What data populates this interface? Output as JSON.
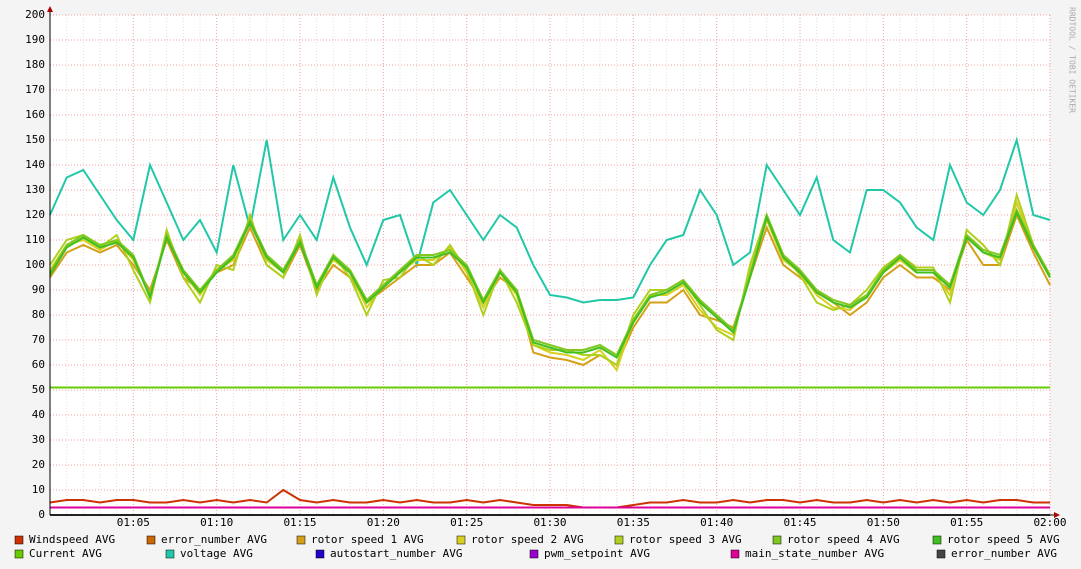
{
  "chart_data": {
    "type": "line",
    "watermark": "RRDTOOL / TOBI OETIKER",
    "categories": [
      null,
      null,
      null,
      null,
      null,
      "01:05",
      null,
      null,
      null,
      null,
      "01:10",
      null,
      null,
      null,
      null,
      "01:15",
      null,
      null,
      null,
      null,
      "01:20",
      null,
      null,
      null,
      null,
      "01:25",
      null,
      null,
      null,
      null,
      "01:30",
      null,
      null,
      null,
      null,
      "01:35",
      null,
      null,
      null,
      null,
      "01:40",
      null,
      null,
      null,
      null,
      "01:45",
      null,
      null,
      null,
      null,
      "01:50",
      null,
      null,
      null,
      null,
      "01:55",
      null,
      null,
      null,
      null,
      "02:00"
    ],
    "ylim": [
      0,
      200
    ],
    "yticks": [
      0,
      10,
      20,
      30,
      40,
      50,
      60,
      70,
      80,
      90,
      100,
      110,
      120,
      130,
      140,
      150,
      160,
      170,
      180,
      190,
      200
    ],
    "grid": true,
    "series": [
      {
        "name": "Windspeed AVG",
        "color": "#cc3300",
        "values": [
          5,
          6,
          6,
          5,
          6,
          6,
          5,
          5,
          6,
          5,
          6,
          5,
          6,
          5,
          10,
          6,
          5,
          6,
          5,
          5,
          6,
          5,
          6,
          5,
          5,
          6,
          5,
          6,
          5,
          4,
          4,
          4,
          3,
          3,
          3,
          4,
          5,
          5,
          6,
          5,
          5,
          6,
          5,
          6,
          6,
          5,
          6,
          5,
          5,
          6,
          5,
          6,
          5,
          6,
          5,
          6,
          5,
          6,
          6,
          5,
          5
        ]
      },
      {
        "name": "error_number AVG",
        "color": "#cc6600",
        "values": [
          0,
          0,
          0,
          0,
          0,
          0,
          0,
          0,
          0,
          0,
          0,
          0,
          0,
          0,
          0,
          0,
          0,
          0,
          0,
          0,
          0,
          0,
          0,
          0,
          0,
          0,
          0,
          0,
          0,
          0,
          0,
          0,
          0,
          0,
          0,
          0,
          0,
          0,
          0,
          0,
          0,
          0,
          0,
          0,
          0,
          0,
          0,
          0,
          0,
          0,
          0,
          0,
          0,
          0,
          0,
          0,
          0,
          0,
          0,
          0,
          0
        ]
      },
      {
        "name": "rotor speed 1 AVG",
        "color": "#d4a017",
        "values": [
          95,
          105,
          108,
          105,
          108,
          100,
          90,
          110,
          95,
          90,
          97,
          100,
          115,
          100,
          95,
          108,
          90,
          100,
          95,
          85,
          90,
          95,
          100,
          100,
          105,
          95,
          85,
          95,
          90,
          65,
          63,
          62,
          60,
          64,
          60,
          75,
          85,
          85,
          90,
          80,
          78,
          75,
          95,
          115,
          100,
          95,
          90,
          85,
          80,
          85,
          95,
          100,
          95,
          95,
          90,
          110,
          100,
          100,
          120,
          105,
          92
        ]
      },
      {
        "name": "rotor speed 2 AVG",
        "color": "#d8d020",
        "values": [
          98,
          108,
          110,
          106,
          110,
          102,
          88,
          112,
          97,
          88,
          98,
          102,
          118,
          102,
          97,
          110,
          92,
          102,
          97,
          83,
          92,
          97,
          102,
          102,
          107,
          97,
          83,
          97,
          88,
          68,
          65,
          64,
          62,
          66,
          58,
          78,
          88,
          88,
          92,
          82,
          75,
          72,
          98,
          118,
          102,
          97,
          88,
          83,
          82,
          88,
          97,
          102,
          97,
          97,
          88,
          112,
          105,
          102,
          125,
          107,
          95
        ]
      },
      {
        "name": "rotor speed 3 AVG",
        "color": "#b0d020",
        "values": [
          100,
          110,
          112,
          107,
          112,
          98,
          85,
          114,
          95,
          85,
          100,
          98,
          120,
          100,
          95,
          112,
          88,
          104,
          95,
          80,
          94,
          95,
          104,
          100,
          108,
          98,
          80,
          98,
          85,
          68,
          66,
          66,
          64,
          64,
          60,
          80,
          90,
          90,
          94,
          84,
          74,
          70,
          100,
          120,
          104,
          96,
          85,
          82,
          84,
          90,
          99,
          104,
          99,
          99,
          85,
          114,
          108,
          100,
          128,
          108,
          96
        ]
      },
      {
        "name": "rotor speed 4 AVG",
        "color": "#80c820",
        "values": [
          97,
          108,
          112,
          108,
          110,
          104,
          88,
          112,
          98,
          90,
          98,
          104,
          118,
          104,
          98,
          110,
          92,
          104,
          98,
          86,
          92,
          98,
          104,
          104,
          106,
          100,
          86,
          98,
          90,
          70,
          68,
          66,
          66,
          68,
          64,
          78,
          88,
          90,
          94,
          86,
          80,
          74,
          96,
          120,
          104,
          98,
          90,
          86,
          84,
          88,
          98,
          104,
          98,
          98,
          92,
          112,
          106,
          104,
          122,
          108,
          96
        ]
      },
      {
        "name": "rotor speed 5 AVG",
        "color": "#40c020",
        "values": [
          96,
          107,
          111,
          107,
          109,
          103,
          87,
          111,
          97,
          89,
          97,
          103,
          117,
          103,
          97,
          109,
          91,
          103,
          97,
          85,
          91,
          97,
          103,
          103,
          105,
          99,
          85,
          97,
          89,
          69,
          67,
          65,
          65,
          67,
          63,
          77,
          87,
          89,
          93,
          85,
          79,
          73,
          95,
          119,
          103,
          97,
          89,
          85,
          83,
          87,
          97,
          103,
          97,
          97,
          91,
          111,
          105,
          103,
          121,
          107,
          95
        ]
      },
      {
        "name": "Current AVG",
        "color": "#66cc00",
        "values": [
          51,
          51,
          51,
          51,
          51,
          51,
          51,
          51,
          51,
          51,
          51,
          51,
          51,
          51,
          51,
          51,
          51,
          51,
          51,
          51,
          51,
          51,
          51,
          51,
          51,
          51,
          51,
          51,
          51,
          51,
          51,
          51,
          51,
          51,
          51,
          51,
          51,
          51,
          51,
          51,
          51,
          51,
          51,
          51,
          51,
          51,
          51,
          51,
          51,
          51,
          51,
          51,
          51,
          51,
          51,
          51,
          51,
          51,
          51,
          51,
          51
        ]
      },
      {
        "name": "voltage AVG",
        "color": "#20c8a8",
        "values": [
          120,
          135,
          138,
          128,
          118,
          110,
          140,
          125,
          110,
          118,
          105,
          140,
          115,
          150,
          110,
          120,
          110,
          135,
          115,
          100,
          118,
          120,
          100,
          125,
          130,
          120,
          110,
          120,
          115,
          100,
          88,
          87,
          85,
          86,
          86,
          87,
          100,
          110,
          112,
          130,
          120,
          100,
          105,
          140,
          130,
          120,
          135,
          110,
          105,
          130,
          130,
          125,
          115,
          110,
          140,
          125,
          120,
          130,
          150,
          120,
          118
        ]
      },
      {
        "name": "autostart_number AVG",
        "color": "#2200cc",
        "values": [
          0,
          0,
          0,
          0,
          0,
          0,
          0,
          0,
          0,
          0,
          0,
          0,
          0,
          0,
          0,
          0,
          0,
          0,
          0,
          0,
          0,
          0,
          0,
          0,
          0,
          0,
          0,
          0,
          0,
          0,
          0,
          0,
          0,
          0,
          0,
          0,
          0,
          0,
          0,
          0,
          0,
          0,
          0,
          0,
          0,
          0,
          0,
          0,
          0,
          0,
          0,
          0,
          0,
          0,
          0,
          0,
          0,
          0,
          0,
          0,
          0
        ]
      },
      {
        "name": "pwm_setpoint AVG",
        "color": "#9900cc",
        "values": [
          0,
          0,
          0,
          0,
          0,
          0,
          0,
          0,
          0,
          0,
          0,
          0,
          0,
          0,
          0,
          0,
          0,
          0,
          0,
          0,
          0,
          0,
          0,
          0,
          0,
          0,
          0,
          0,
          0,
          0,
          0,
          0,
          0,
          0,
          0,
          0,
          0,
          0,
          0,
          0,
          0,
          0,
          0,
          0,
          0,
          0,
          0,
          0,
          0,
          0,
          0,
          0,
          0,
          0,
          0,
          0,
          0,
          0,
          0,
          0,
          0
        ]
      },
      {
        "name": "main_state_number AVG",
        "color": "#dd0099",
        "values": [
          3,
          3,
          3,
          3,
          3,
          3,
          3,
          3,
          3,
          3,
          3,
          3,
          3,
          3,
          3,
          3,
          3,
          3,
          3,
          3,
          3,
          3,
          3,
          3,
          3,
          3,
          3,
          3,
          3,
          3,
          3,
          3,
          3,
          3,
          3,
          3,
          3,
          3,
          3,
          3,
          3,
          3,
          3,
          3,
          3,
          3,
          3,
          3,
          3,
          3,
          3,
          3,
          3,
          3,
          3,
          3,
          3,
          3,
          3,
          3,
          3
        ]
      },
      {
        "name": "error_number AVG",
        "color": "#444444",
        "values": [
          0,
          0,
          0,
          0,
          0,
          0,
          0,
          0,
          0,
          0,
          0,
          0,
          0,
          0,
          0,
          0,
          0,
          0,
          0,
          0,
          0,
          0,
          0,
          0,
          0,
          0,
          0,
          0,
          0,
          0,
          0,
          0,
          0,
          0,
          0,
          0,
          0,
          0,
          0,
          0,
          0,
          0,
          0,
          0,
          0,
          0,
          0,
          0,
          0,
          0,
          0,
          0,
          0,
          0,
          0,
          0,
          0,
          0,
          0,
          0,
          0
        ]
      }
    ]
  }
}
